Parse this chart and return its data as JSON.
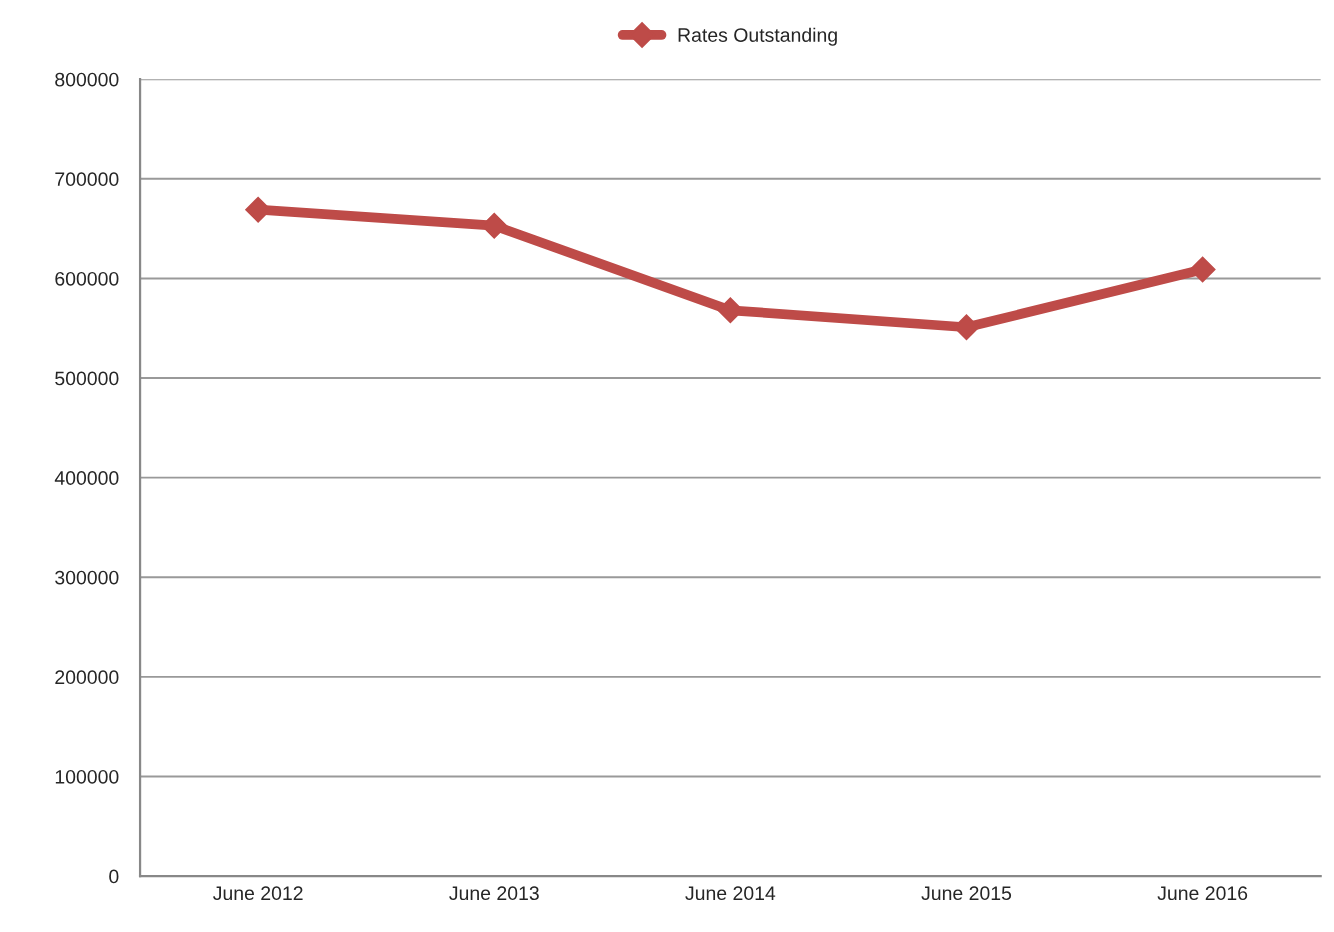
{
  "chart_data": {
    "type": "line",
    "categories": [
      "June 2012",
      "June 2013",
      "June 2014",
      "June 2015",
      "June 2016"
    ],
    "series": [
      {
        "name": "Rates Outstanding",
        "color": "#be4b48",
        "values": [
          669000,
          653000,
          568000,
          551000,
          609000
        ]
      }
    ],
    "ylim": [
      0,
      800000
    ],
    "yticks": [
      0,
      100000,
      200000,
      300000,
      400000,
      500000,
      600000,
      700000,
      800000
    ],
    "grid": "y",
    "legend": "top",
    "marker": "diamond",
    "line_style": "solid"
  }
}
